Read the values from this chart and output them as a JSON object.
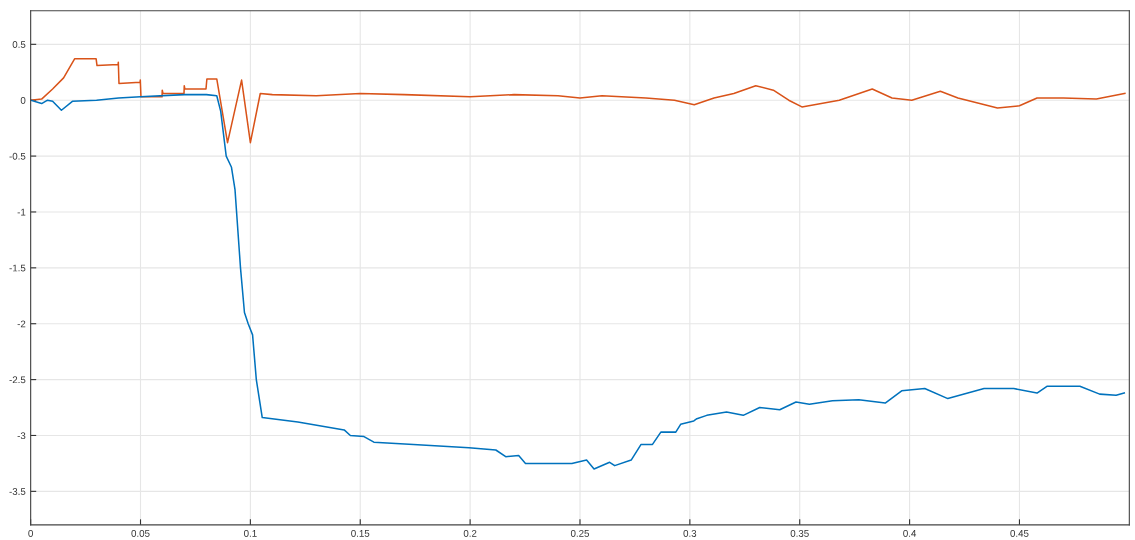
{
  "chart_data": {
    "type": "line",
    "xlim": [
      0,
      0.5
    ],
    "ylim": [
      -3.8,
      0.8
    ],
    "xticks": [
      0,
      0.05,
      0.1,
      0.15,
      0.2,
      0.25,
      0.3,
      0.35,
      0.4,
      0.45
    ],
    "yticks": [
      -3.5,
      -3,
      -2.5,
      -2,
      -1.5,
      -1,
      -0.5,
      0,
      0.5
    ],
    "grid": true,
    "series": [
      {
        "color": "#d95319",
        "x": [
          0,
          0.005,
          0.01,
          0.015,
          0.02,
          0.0298,
          0.0302,
          0.0398,
          0.0399,
          0.0402,
          0.0498,
          0.0499,
          0.0502,
          0.0598,
          0.0599,
          0.0602,
          0.0698,
          0.0699,
          0.0702,
          0.0798,
          0.0802,
          0.0847,
          0.0896,
          0.096,
          0.1,
          0.1045,
          0.11,
          0.13,
          0.15,
          0.17,
          0.2,
          0.22,
          0.24,
          0.25,
          0.26,
          0.28,
          0.293,
          0.302,
          0.311,
          0.32,
          0.33,
          0.338,
          0.345,
          0.351,
          0.368,
          0.383,
          0.392,
          0.401,
          0.414,
          0.422,
          0.44,
          0.45,
          0.458,
          0.47,
          0.485,
          0.498
        ],
        "values": [
          0,
          0.01,
          0.1,
          0.2,
          0.37,
          0.37,
          0.31,
          0.32,
          0.34,
          0.15,
          0.16,
          0.18,
          0.03,
          0.03,
          0.09,
          0.06,
          0.06,
          0.13,
          0.1,
          0.1,
          0.19,
          0.19,
          -0.38,
          0.18,
          -0.38,
          0.06,
          0.05,
          0.04,
          0.06,
          0.05,
          0.03,
          0.05,
          0.04,
          0.02,
          0.04,
          0.02,
          0.0,
          -0.04,
          0.02,
          0.06,
          0.13,
          0.09,
          0.0,
          -0.06,
          0.0,
          0.1,
          0.02,
          0.0,
          0.08,
          0.02,
          -0.07,
          -0.05,
          0.02,
          0.02,
          0.01,
          0.06
        ]
      },
      {
        "color": "#0072bd",
        "x": [
          0,
          0.005,
          0.0077,
          0.01,
          0.014,
          0.019,
          0.03,
          0.04,
          0.05,
          0.07,
          0.08,
          0.0847,
          0.0865,
          0.089,
          0.0914,
          0.093,
          0.0955,
          0.0973,
          0.099,
          0.101,
          0.1027,
          0.1054,
          0.1216,
          0.1427,
          0.1455,
          0.1517,
          0.1562,
          0.1742,
          0.1995,
          0.2117,
          0.2162,
          0.2221,
          0.2252,
          0.2463,
          0.253,
          0.2564,
          0.2635,
          0.2658,
          0.2733,
          0.2778,
          0.283,
          0.2868,
          0.2936,
          0.2958,
          0.3018,
          0.3032,
          0.3077,
          0.3167,
          0.3243,
          0.3318,
          0.3409,
          0.3483,
          0.3544,
          0.3649,
          0.3769,
          0.3889,
          0.3964,
          0.4069,
          0.4174,
          0.4339,
          0.4474,
          0.458,
          0.4625,
          0.4775,
          0.4865,
          0.494,
          0.4977
        ],
        "values": [
          0,
          -0.03,
          0.0,
          -0.01,
          -0.09,
          -0.01,
          0.0,
          0.02,
          0.03,
          0.05,
          0.05,
          0.04,
          -0.1,
          -0.5,
          -0.6,
          -0.8,
          -1.5,
          -1.9,
          -2.0,
          -2.1,
          -2.5,
          -2.84,
          -2.88,
          -2.95,
          -3.0,
          -3.01,
          -3.06,
          -3.08,
          -3.11,
          -3.13,
          -3.19,
          -3.18,
          -3.25,
          -3.25,
          -3.22,
          -3.3,
          -3.24,
          -3.27,
          -3.22,
          -3.08,
          -3.08,
          -2.97,
          -2.97,
          -2.9,
          -2.87,
          -2.85,
          -2.82,
          -2.79,
          -2.82,
          -2.75,
          -2.77,
          -2.7,
          -2.72,
          -2.69,
          -2.68,
          -2.71,
          -2.6,
          -2.58,
          -2.67,
          -2.58,
          -2.58,
          -2.62,
          -2.56,
          -2.56,
          -2.63,
          -2.64,
          -2.62
        ]
      }
    ]
  }
}
